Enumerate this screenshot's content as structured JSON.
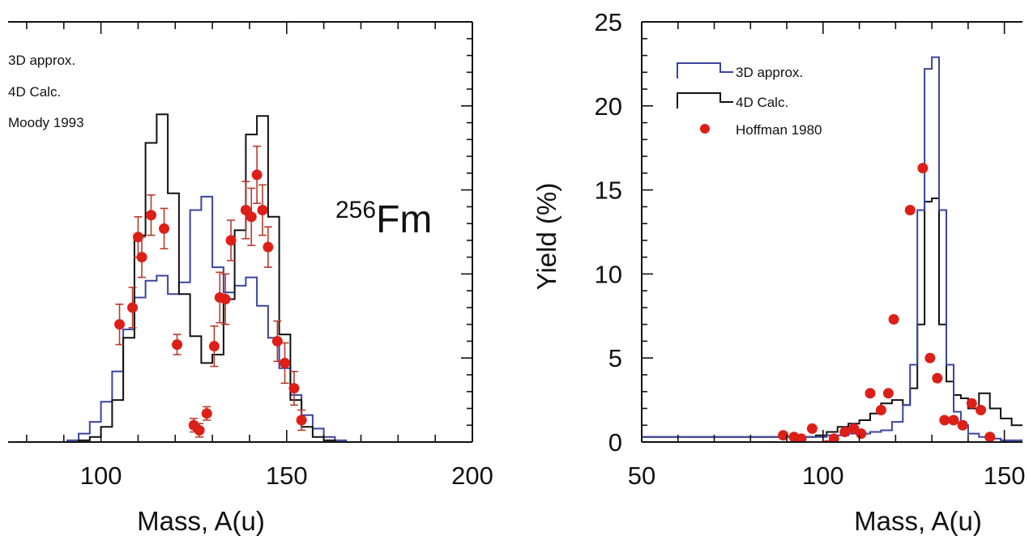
{
  "colors": {
    "approx3d": "#3a44a0",
    "calc4d": "#111111",
    "experiment": "#dd1f18",
    "errorbar": "#b83a2a",
    "axis": "#111111"
  },
  "chart_data": [
    {
      "id": "left",
      "type": "histogram-with-points",
      "xlabel": "Mass, A(u)",
      "ylabel": "",
      "xlim": [
        75,
        200
      ],
      "ylim": [
        0,
        25
      ],
      "x_ticks": [
        100,
        150,
        200
      ],
      "nuclide": {
        "mass": "256",
        "symbol": "Fm"
      },
      "legend": [
        "3D approx.",
        "4D Calc.",
        "Moody 1993"
      ],
      "series": [
        {
          "name": "3D approx.",
          "kind": "step",
          "bin_edges": [
            88,
            91,
            94,
            97,
            100,
            103,
            106,
            109,
            112,
            115,
            118,
            121,
            124,
            127,
            130,
            133,
            136,
            139,
            142,
            145,
            148,
            151,
            154,
            157,
            160,
            163,
            166,
            169
          ],
          "values": [
            0,
            0.1,
            0.5,
            1.2,
            2.4,
            4.2,
            6.7,
            8.6,
            9.6,
            9.9,
            8.8,
            9.5,
            13.8,
            14.6,
            10.4,
            8.9,
            9.3,
            9.8,
            8.1,
            6.2,
            4.4,
            2.8,
            1.6,
            0.8,
            0.3,
            0.1,
            0
          ]
        },
        {
          "name": "4D Calc.",
          "kind": "step",
          "bin_edges": [
            88,
            91,
            94,
            97,
            100,
            103,
            106,
            109,
            112,
            115,
            118,
            121,
            124,
            127,
            130,
            133,
            136,
            139,
            142,
            145,
            148,
            151,
            154,
            157,
            160,
            163,
            166,
            169
          ],
          "values": [
            0,
            0,
            0.1,
            0.3,
            0.9,
            2.5,
            6.2,
            12.3,
            17.8,
            19.5,
            14.8,
            8.8,
            6.3,
            4.7,
            5.2,
            8.5,
            12.6,
            18.3,
            19.4,
            13.4,
            6.4,
            2.5,
            0.9,
            0.3,
            0.1,
            0,
            0
          ]
        },
        {
          "name": "Moody 1993",
          "kind": "points",
          "x": [
            105.0,
            108.5,
            110.0,
            111.0,
            113.5,
            117.0,
            120.5,
            125.0,
            126.5,
            128.5,
            130.5,
            132.0,
            133.5,
            135.0,
            139.0,
            140.5,
            142.0,
            143.5,
            145.0,
            147.5,
            149.5,
            152.0,
            154.0
          ],
          "y": [
            7.0,
            8.0,
            12.2,
            11.0,
            13.5,
            12.7,
            5.8,
            1.0,
            0.7,
            1.7,
            5.7,
            8.6,
            8.5,
            12.0,
            13.8,
            13.4,
            15.9,
            13.8,
            11.6,
            6.0,
            4.7,
            3.2,
            1.3
          ],
          "err": [
            1.2,
            1.2,
            1.2,
            1.2,
            1.2,
            1.2,
            0.6,
            0.4,
            0.4,
            0.4,
            1.2,
            1.5,
            1.5,
            1.2,
            1.7,
            1.7,
            1.7,
            1.5,
            1.2,
            1.2,
            1.2,
            1.0,
            0.6
          ]
        }
      ]
    },
    {
      "id": "right",
      "type": "histogram-with-points",
      "xlabel": "Mass, A(u)",
      "ylabel": "Yield (%)",
      "xlim": [
        50,
        155
      ],
      "ylim": [
        0,
        25
      ],
      "x_ticks": [
        50,
        100,
        150
      ],
      "y_ticks": [
        0,
        5,
        10,
        15,
        20,
        25
      ],
      "legend": [
        "3D approx.",
        "4D Calc.",
        "Hoffman 1980"
      ],
      "series": [
        {
          "name": "3D approx.",
          "kind": "step",
          "bin_edges": [
            50,
            98,
            101,
            104,
            107,
            110,
            113,
            116,
            119,
            122,
            124,
            126,
            128,
            130,
            132,
            134,
            136,
            138,
            140,
            143,
            146,
            149,
            152,
            155
          ],
          "values": [
            0.3,
            0.3,
            0.4,
            0.4,
            0.5,
            0.5,
            0.6,
            0.7,
            1.2,
            2.2,
            4.6,
            13.8,
            22.2,
            22.9,
            13.8,
            4.6,
            1.8,
            1.0,
            0.5,
            0.3,
            0.2,
            0.1,
            0.1
          ]
        },
        {
          "name": "4D Calc.",
          "kind": "step",
          "bin_edges": [
            50,
            98,
            101,
            104,
            107,
            110,
            113,
            116,
            119,
            122,
            124,
            126,
            128,
            130,
            132,
            134,
            136,
            138,
            140,
            143,
            146,
            149,
            152,
            155
          ],
          "values": [
            0.3,
            0.4,
            0.6,
            0.9,
            1.1,
            1.3,
            1.7,
            2.3,
            2.5,
            2.2,
            3.2,
            7.0,
            14.3,
            14.5,
            7.0,
            3.6,
            2.8,
            2.6,
            2.0,
            2.9,
            2.0,
            1.4,
            1.0
          ]
        },
        {
          "name": "Hoffman 1980",
          "kind": "points",
          "x": [
            89,
            92,
            94,
            97,
            101,
            103,
            106,
            108.5,
            110.5,
            113,
            116,
            118,
            119.5,
            124,
            127.5,
            129.5,
            131.5,
            133.5,
            136,
            138.5,
            141,
            143.5,
            146
          ],
          "y": [
            0.4,
            0.3,
            0.2,
            0.8,
            -0.2,
            0.2,
            0.6,
            0.8,
            0.5,
            2.9,
            1.9,
            2.9,
            7.3,
            13.8,
            16.3,
            5.0,
            3.8,
            1.3,
            1.3,
            1.0,
            2.3,
            1.9,
            0.3
          ]
        }
      ]
    }
  ]
}
